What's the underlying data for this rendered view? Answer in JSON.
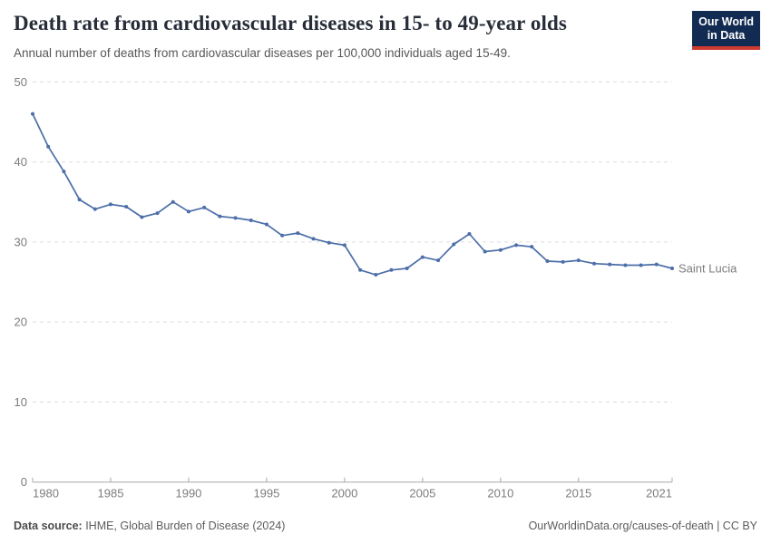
{
  "header": {
    "title": "Death rate from cardiovascular diseases in 15- to 49-year olds",
    "subtitle": "Annual number of deaths from cardiovascular diseases per 100,000 individuals aged 15-49.",
    "logo": {
      "line1": "Our World",
      "line2": "in Data"
    }
  },
  "chart_data": {
    "type": "line",
    "title": "Death rate from cardiovascular diseases in 15- to 49-year olds",
    "xlabel": "",
    "ylabel": "",
    "xlim": [
      1980,
      2021
    ],
    "ylim": [
      0,
      50
    ],
    "x_ticks": [
      1980,
      1985,
      1990,
      1995,
      2000,
      2005,
      2010,
      2015,
      2021
    ],
    "y_ticks": [
      0,
      10,
      20,
      30,
      40,
      50
    ],
    "grid": "horizontal-dashed",
    "legend_position": "end-of-line-label",
    "series": [
      {
        "name": "Saint Lucia",
        "color": "#4c6ea8",
        "x": [
          1980,
          1981,
          1982,
          1983,
          1984,
          1985,
          1986,
          1987,
          1988,
          1989,
          1990,
          1991,
          1992,
          1993,
          1994,
          1995,
          1996,
          1997,
          1998,
          1999,
          2000,
          2001,
          2002,
          2003,
          2004,
          2005,
          2006,
          2007,
          2008,
          2009,
          2010,
          2011,
          2012,
          2013,
          2014,
          2015,
          2016,
          2017,
          2018,
          2019,
          2020,
          2021
        ],
        "values": [
          46.0,
          41.9,
          38.8,
          35.3,
          34.1,
          34.7,
          34.4,
          33.1,
          33.6,
          35.0,
          33.8,
          34.3,
          33.2,
          33.0,
          32.7,
          32.2,
          30.8,
          31.1,
          30.4,
          29.9,
          29.6,
          26.5,
          25.9,
          26.5,
          26.7,
          28.1,
          27.7,
          29.7,
          31.0,
          28.8,
          29.0,
          29.6,
          29.4,
          27.6,
          27.5,
          27.7,
          27.3,
          27.2,
          27.1,
          27.1,
          27.2,
          26.7
        ]
      }
    ],
    "colors": {
      "line": "#4c6ea8",
      "grid": "#dcdcdc",
      "axis": "#a8a8a8",
      "tick_label": "#7c7c7c"
    }
  },
  "footer": {
    "source_label": "Data source:",
    "source_text": " IHME, Global Burden of Disease (2024)",
    "right_text": "OurWorldinData.org/causes-of-death | CC BY"
  }
}
